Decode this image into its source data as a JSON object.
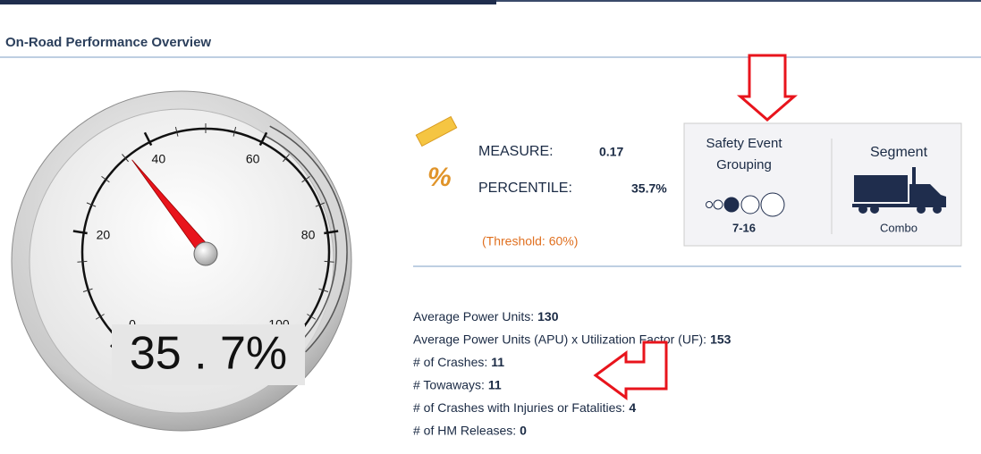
{
  "header": {
    "title": "On-Road Performance Overview"
  },
  "gauge": {
    "value": 35.7,
    "range": [
      0,
      100
    ],
    "ticks": [
      0,
      20,
      40,
      60,
      80,
      100
    ],
    "readout": "35 . 7%",
    "threshold": {
      "value": 60,
      "label": "(Threshold: 60%)"
    }
  },
  "measure": {
    "label": "MEASURE:",
    "value": 0.17
  },
  "percentile": {
    "label": "PERCENTILE:",
    "value": "35.7%"
  },
  "safety_event_grouping": {
    "title": [
      "Safety Event",
      "Grouping"
    ],
    "value": "7-16"
  },
  "segment": {
    "title": "Segment",
    "value": "Combo"
  },
  "stats": [
    {
      "label": "Average Power Units:",
      "value": 130
    },
    {
      "label": "Average Power Units (APU) x Utilization Factor (UF):",
      "value": 153
    },
    {
      "label": "# of Crashes:",
      "value": 11
    },
    {
      "label": "# Towaways:",
      "value": 11
    },
    {
      "label": "# of Crashes with Injuries or Fatalities:",
      "value": 4
    },
    {
      "label": "# of HM Releases:",
      "value": 0
    }
  ]
}
